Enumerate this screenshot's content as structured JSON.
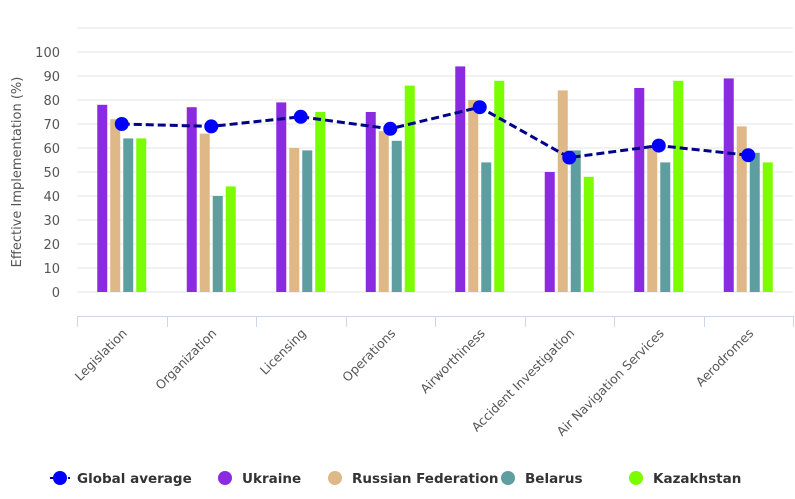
{
  "chart_data": {
    "type": "bar",
    "title": "",
    "xlabel": "",
    "ylabel": "Effective Implementation (%)",
    "ylim": [
      -10,
      110
    ],
    "yticks": [
      0,
      10,
      20,
      30,
      40,
      50,
      60,
      70,
      80,
      90,
      100
    ],
    "grid": true,
    "legend_position": "bottom",
    "categories": [
      "Legislation",
      "Organization",
      "Licensing",
      "Operations",
      "Airworthiness",
      "Accident Investigation",
      "Air Navigation Services",
      "Aerodromes"
    ],
    "series": [
      {
        "name": "Ukraine",
        "kind": "bar",
        "color": "#8a2be2",
        "values": [
          78,
          77,
          79,
          75,
          94,
          50,
          85,
          89
        ]
      },
      {
        "name": "Russian Federation",
        "kind": "bar",
        "color": "#deb887",
        "values": [
          72,
          66,
          60,
          67,
          80,
          84,
          61,
          69
        ]
      },
      {
        "name": "Belarus",
        "kind": "bar",
        "color": "#5f9ea0",
        "values": [
          64,
          40,
          59,
          63,
          54,
          59,
          54,
          58
        ]
      },
      {
        "name": "Kazakhstan",
        "kind": "bar",
        "color": "#7cfc00",
        "values": [
          64,
          44,
          75,
          86,
          88,
          48,
          88,
          54
        ]
      }
    ],
    "line_series": {
      "name": "Global average",
      "kind": "line",
      "style": "dashed",
      "color": "#0000ff",
      "line_color": "#00008b",
      "values": [
        70,
        69,
        73,
        68,
        77,
        56,
        61,
        57
      ]
    },
    "legend": [
      "Global average",
      "Ukraine",
      "Russian Federation",
      "Belarus",
      "Kazakhstan"
    ]
  }
}
